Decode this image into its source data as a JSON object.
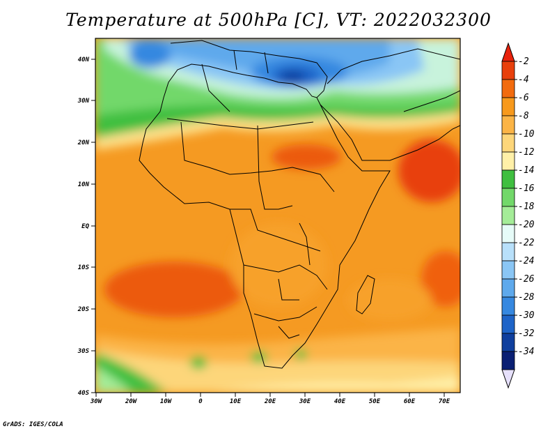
{
  "title": "Temperature at 500hPa [C], VT: 2022032300",
  "credit": "GrADS: IGES/COLA",
  "map": {
    "lat_labels": [
      "40N",
      "30N",
      "20N",
      "10N",
      "EQ",
      "10S",
      "20S",
      "30S",
      "40S"
    ],
    "lon_labels": [
      "30W",
      "20W",
      "10W",
      "0",
      "10E",
      "20E",
      "30E",
      "40E",
      "50E",
      "60E",
      "70E"
    ]
  },
  "colorbar": {
    "labels": [
      "-2",
      "-4",
      "-6",
      "-8",
      "-10",
      "-12",
      "-14",
      "-16",
      "-18",
      "-20",
      "-22",
      "-24",
      "-26",
      "-28",
      "-30",
      "-32",
      "-34"
    ],
    "colors": [
      "#e8400c",
      "#f26b0e",
      "#f7991c",
      "#fbb446",
      "#fdd67a",
      "#fff0a8",
      "#3fbf40",
      "#72d86a",
      "#a4ec98",
      "#e6fbf8",
      "#b8e0fa",
      "#8ac6f5",
      "#5ea9ec",
      "#3688e0",
      "#1e64c8",
      "#0f3f9e",
      "#0a1f73"
    ],
    "top_arrow_color": "#e8220c",
    "bottom_arrow_color": "#e6e0fb"
  }
}
